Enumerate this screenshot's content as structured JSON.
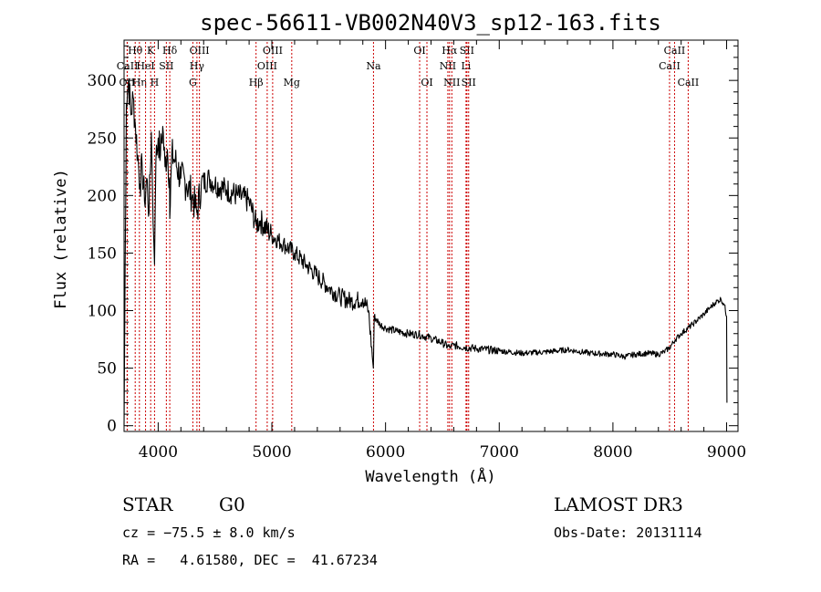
{
  "chart_data": {
    "type": "line",
    "title": "spec-56611-VB002N40V3_sp12-163.fits",
    "xlabel": "Wavelength (Å)",
    "ylabel": "Flux (relative)",
    "xlim": [
      3700,
      9100
    ],
    "ylim": [
      -5,
      335
    ],
    "xticks": [
      4000,
      5000,
      6000,
      7000,
      8000,
      9000
    ],
    "yticks": [
      0,
      50,
      100,
      150,
      200,
      250,
      300
    ],
    "grid": false,
    "series": [
      {
        "name": "spectrum",
        "x": [
          3700,
          3720,
          3740,
          3760,
          3780,
          3800,
          3820,
          3840,
          3860,
          3880,
          3900,
          3920,
          3940,
          3960,
          3968,
          3980,
          4000,
          4020,
          4040,
          4060,
          4080,
          4100,
          4102,
          4120,
          4150,
          4200,
          4250,
          4300,
          4340,
          4380,
          4450,
          4500,
          4600,
          4700,
          4800,
          4861,
          4900,
          5000,
          5100,
          5200,
          5300,
          5400,
          5500,
          5600,
          5700,
          5800,
          5850,
          5893,
          5900,
          5950,
          6000,
          6100,
          6200,
          6300,
          6400,
          6500,
          6563,
          6600,
          6700,
          6800,
          7000,
          7200,
          7400,
          7600,
          7800,
          8000,
          8100,
          8200,
          8300,
          8400,
          8450,
          8500,
          8550,
          8600,
          8700,
          8800,
          8850,
          8900,
          8950,
          8980,
          9000,
          9003
        ],
        "y": [
          0,
          280,
          300,
          270,
          285,
          260,
          235,
          210,
          225,
          195,
          215,
          185,
          255,
          165,
          140,
          230,
          250,
          235,
          260,
          225,
          240,
          215,
          180,
          235,
          230,
          215,
          210,
          200,
          185,
          210,
          215,
          210,
          205,
          200,
          195,
          175,
          178,
          165,
          158,
          150,
          140,
          130,
          120,
          112,
          108,
          110,
          100,
          50,
          95,
          88,
          85,
          82,
          80,
          79,
          76,
          72,
          68,
          70,
          68,
          67,
          65,
          63,
          64,
          66,
          63,
          62,
          60,
          62,
          63,
          62,
          64,
          68,
          75,
          80,
          88,
          97,
          102,
          107,
          110,
          105,
          95,
          20
        ]
      }
    ],
    "lines": [
      {
        "label": "OII",
        "x": 3727,
        "row": 2
      },
      {
        "label": "CaII",
        "x": 3729,
        "row": 1
      },
      {
        "label": "Hθ",
        "x": 3798,
        "row": 0
      },
      {
        "label": "Hη",
        "x": 3835,
        "row": 2
      },
      {
        "label": "HeI",
        "x": 3889,
        "row": 1
      },
      {
        "label": "K",
        "x": 3934,
        "row": 0
      },
      {
        "label": "H",
        "x": 3968,
        "row": 2
      },
      {
        "label": "SII",
        "x": 4072,
        "row": 1
      },
      {
        "label": "Hδ",
        "x": 4102,
        "row": 0
      },
      {
        "label": "G",
        "x": 4305,
        "row": 2
      },
      {
        "label": "Hγ",
        "x": 4341,
        "row": 1
      },
      {
        "label": "OIII",
        "x": 4363,
        "row": 0
      },
      {
        "label": "Hβ",
        "x": 4861,
        "row": 2
      },
      {
        "label": "OIII",
        "x": 4959,
        "row": 1
      },
      {
        "label": "OIII",
        "x": 5007,
        "row": 0
      },
      {
        "label": "Mg",
        "x": 5175,
        "row": 2
      },
      {
        "label": "Na",
        "x": 5894,
        "row": 1
      },
      {
        "label": "OI",
        "x": 6300,
        "row": 0
      },
      {
        "label": "OI",
        "x": 6364,
        "row": 2
      },
      {
        "label": "NII",
        "x": 6548,
        "row": 1
      },
      {
        "label": "Hα",
        "x": 6563,
        "row": 0
      },
      {
        "label": "NII",
        "x": 6583,
        "row": 2
      },
      {
        "label": "Li",
        "x": 6708,
        "row": 1
      },
      {
        "label": "SII",
        "x": 6716,
        "row": 0
      },
      {
        "label": "SII",
        "x": 6731,
        "row": 2
      },
      {
        "label": "CaII",
        "x": 8498,
        "row": 1
      },
      {
        "label": "CaII",
        "x": 8542,
        "row": 0
      },
      {
        "label": "CaII",
        "x": 8662,
        "row": 2
      }
    ]
  },
  "info": {
    "class": "STAR",
    "subclass": "G0",
    "survey": "LAMOST DR3",
    "redshift": "cz = −75.5 ± 8.0 km/s",
    "obs_date": "Obs-Date: 20131114",
    "coords": "RA =   4.61580, DEC =  41.67234"
  }
}
